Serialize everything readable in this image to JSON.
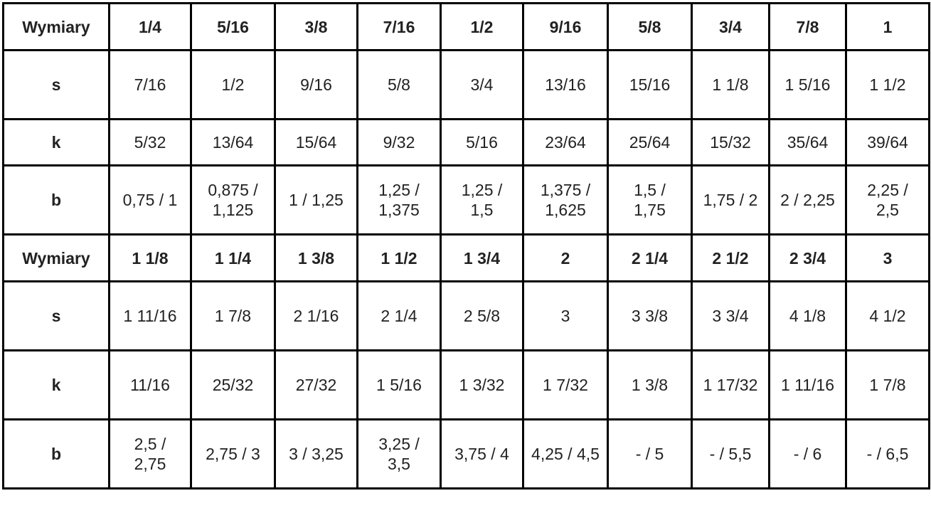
{
  "table": {
    "rows": [
      {
        "kind": "header",
        "cells": [
          "Wymiary",
          "1/4",
          "5/16",
          "3/8",
          "7/16",
          "1/2",
          "9/16",
          "5/8",
          "3/4",
          "7/8",
          "1"
        ]
      },
      {
        "kind": "tall",
        "cells": [
          "s",
          "7/16",
          "1/2",
          "9/16",
          "5/8",
          "3/4",
          "13/16",
          "15/16",
          "1 1/8",
          "1 5/16",
          "1 1/2"
        ]
      },
      {
        "kind": "short",
        "cells": [
          "k",
          "5/32",
          "13/64",
          "15/64",
          "9/32",
          "5/16",
          "23/64",
          "25/64",
          "15/32",
          "35/64",
          "39/64"
        ]
      },
      {
        "kind": "tall",
        "cells": [
          "b",
          "0,75 / 1",
          "0,875 / 1,125",
          "1 / 1,25",
          "1,25 / 1,375",
          "1,25 / 1,5",
          "1,375 / 1,625",
          "1,5 / 1,75",
          "1,75 / 2",
          "2 / 2,25",
          "2,25 / 2,5"
        ]
      },
      {
        "kind": "header",
        "cells": [
          "Wymiary",
          "1 1/8",
          "1 1/4",
          "1 3/8",
          "1 1/2",
          "1 3/4",
          "2",
          "2 1/4",
          "2 1/2",
          "2 3/4",
          "3"
        ]
      },
      {
        "kind": "tall",
        "cells": [
          "s",
          "1 11/16",
          "1 7/8",
          "2 1/16",
          "2 1/4",
          "2 5/8",
          "3",
          "3 3/8",
          "3 3/4",
          "4 1/8",
          "4 1/2"
        ]
      },
      {
        "kind": "tall",
        "cells": [
          "k",
          "11/16",
          "25/32",
          "27/32",
          "1 5/16",
          "1 3/32",
          "1 7/32",
          "1 3/8",
          "1 17/32",
          "1 11/16",
          "1 7/8"
        ]
      },
      {
        "kind": "tall",
        "cells": [
          "b",
          "2,5 / 2,75",
          "2,75 / 3",
          "3 / 3,25",
          "3,25 / 3,5",
          "3,75 / 4",
          "4,25 / 4,5",
          "- / 5",
          "- / 5,5",
          "- / 6",
          "- / 6,5"
        ]
      }
    ]
  }
}
